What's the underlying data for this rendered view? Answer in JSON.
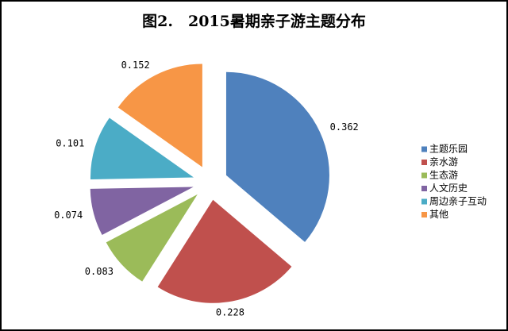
{
  "chart_data": {
    "type": "pie",
    "title": "图2.　2015暑期亲子游主题分布",
    "categories": [
      "主题乐园",
      "亲水游",
      "生态游",
      "人文历史",
      "周边亲子互动",
      "其他"
    ],
    "values": [
      0.362,
      0.228,
      0.083,
      0.074,
      0.101,
      0.152
    ],
    "colors": [
      "#4f81bd",
      "#c0504d",
      "#9bbb59",
      "#8064a2",
      "#4bacc6",
      "#f79646"
    ]
  }
}
